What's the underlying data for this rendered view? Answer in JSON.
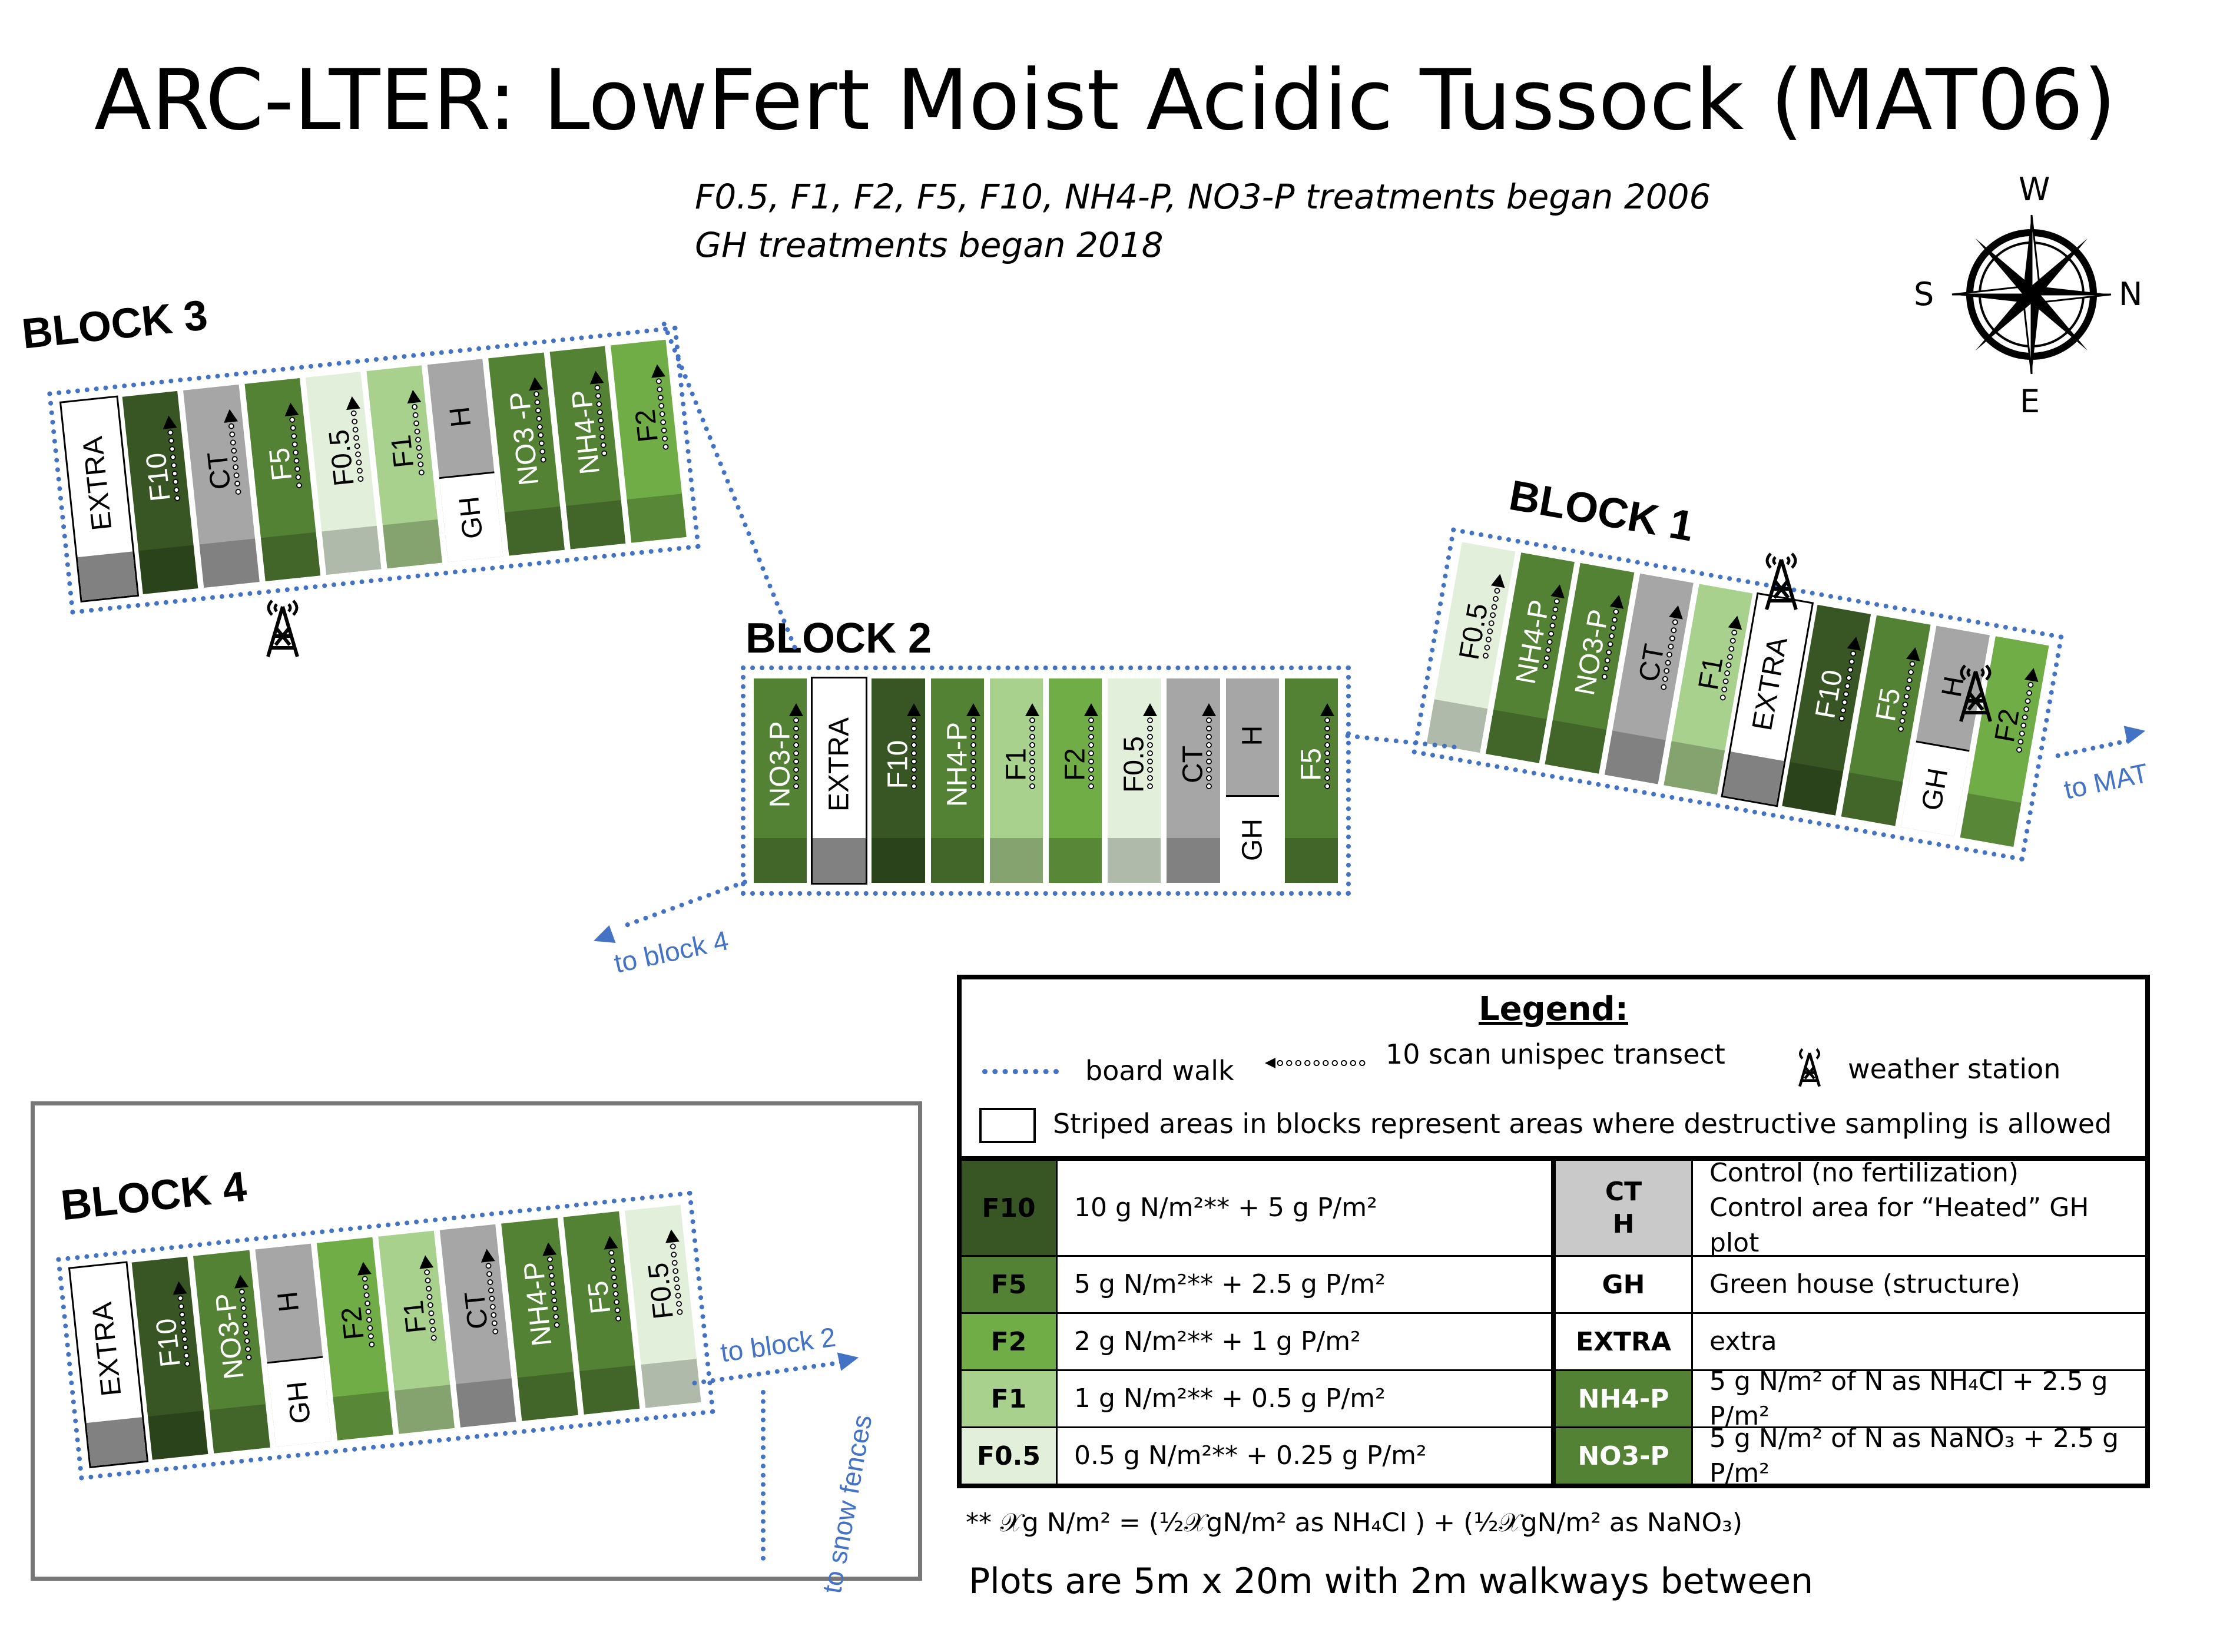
{
  "title": "ARC-LTER: LowFert Moist Acidic Tussock (MAT06)",
  "notes": [
    "F0.5, F1, F2, F5, F10, NH4-P, NO3-P treatments began 2006",
    "GH treatments began 2018"
  ],
  "compass": {
    "top": "W",
    "left": "S",
    "right": "N",
    "bottom": "E"
  },
  "colors": {
    "F10": "#375623",
    "F5": "#548235",
    "F2": "#70ad47",
    "F1": "#a9d18e",
    "F0.5": "#e2efda",
    "CT": "#a6a6a6",
    "H": "#a6a6a6",
    "GH": "#ffffff",
    "EXTRA": "#ffffff",
    "NH4-P": "#548235",
    "NO3-P": "#548235",
    "boardwalk": "#4472c4"
  },
  "blocks": {
    "block3": {
      "label": "BLOCK 3",
      "plots": [
        "EXTRA",
        "F10",
        "CT",
        "F5",
        "F0.5",
        "F1",
        "H",
        "NO3 -P",
        "NH4-P",
        "F2"
      ],
      "lower": [
        "",
        "",
        "",
        "",
        "",
        "",
        "GH",
        "",
        "",
        ""
      ]
    },
    "block2": {
      "label": "BLOCK 2",
      "plots": [
        "NO3-P",
        "EXTRA",
        "F10",
        "NH4-P",
        "F1",
        "F2",
        "F0.5",
        "CT",
        "H",
        "F5"
      ],
      "lower": [
        "",
        "",
        "",
        "",
        "",
        "",
        "",
        "",
        "GH",
        ""
      ]
    },
    "block1": {
      "label": "BLOCK 1",
      "plots": [
        "F0.5",
        "NH4-P",
        "NO3-P",
        "CT",
        "F1",
        "EXTRA",
        "F10",
        "F5",
        "H",
        "F2"
      ],
      "lower": [
        "",
        "",
        "",
        "",
        "",
        "",
        "",
        "",
        "GH",
        ""
      ]
    },
    "block4": {
      "label": "BLOCK 4",
      "plots": [
        "EXTRA",
        "F10",
        "NO3-P",
        "H",
        "F2",
        "F1",
        "CT",
        "NH4-P",
        "F5",
        "F0.5"
      ],
      "lower": [
        "",
        "",
        "",
        "GH",
        "",
        "",
        "",
        "",
        "",
        ""
      ]
    }
  },
  "path_labels": {
    "to_block4": "to block 4",
    "to_mat": "to MAT",
    "to_block2": "to block 2",
    "to_snow_fences": "to snow fences"
  },
  "legend": {
    "title": "Legend:",
    "board_walk": "board walk",
    "transect": "10 scan unispec  transect",
    "weather_station": "weather station",
    "striped": "Striped areas in blocks represent areas where destructive sampling is allowed",
    "rows": [
      {
        "left_code": "F10",
        "left_desc": "10 g N/m²** + 5 g P/m²",
        "right_code": "CT",
        "right_code2": "H",
        "right_desc": "Control (no fertilization)",
        "right_desc2": "Control area for “Heated” GH plot"
      },
      {
        "left_code": "F5",
        "left_desc": "5 g N/m²** + 2.5 g P/m²",
        "right_code": "GH",
        "right_desc": "Green house (structure)"
      },
      {
        "left_code": "F2",
        "left_desc": "2 g N/m²** + 1 g P/m²",
        "right_code": "EXTRA",
        "right_desc": "extra"
      },
      {
        "left_code": "F1",
        "left_desc": "1 g N/m²** + 0.5 g P/m²",
        "right_code": "NH4-P",
        "right_desc": "5 g N/m² of N as NH₄Cl  + 2.5 g P/m²"
      },
      {
        "left_code": "F0.5",
        "left_desc": "0.5 g N/m²** + 0.25 g P/m²",
        "right_code": "NO3-P",
        "right_desc": "5 g N/m² of N as NaNO₃ + 2.5 g P/m²"
      }
    ]
  },
  "footnote": "**  𝒳g N/m² = (½𝒳gN/m² as NH₄Cl ) + (½𝒳gN/m² as NaNO₃)",
  "plot_size": "Plots are 5m x 20m with 2m walkways between"
}
